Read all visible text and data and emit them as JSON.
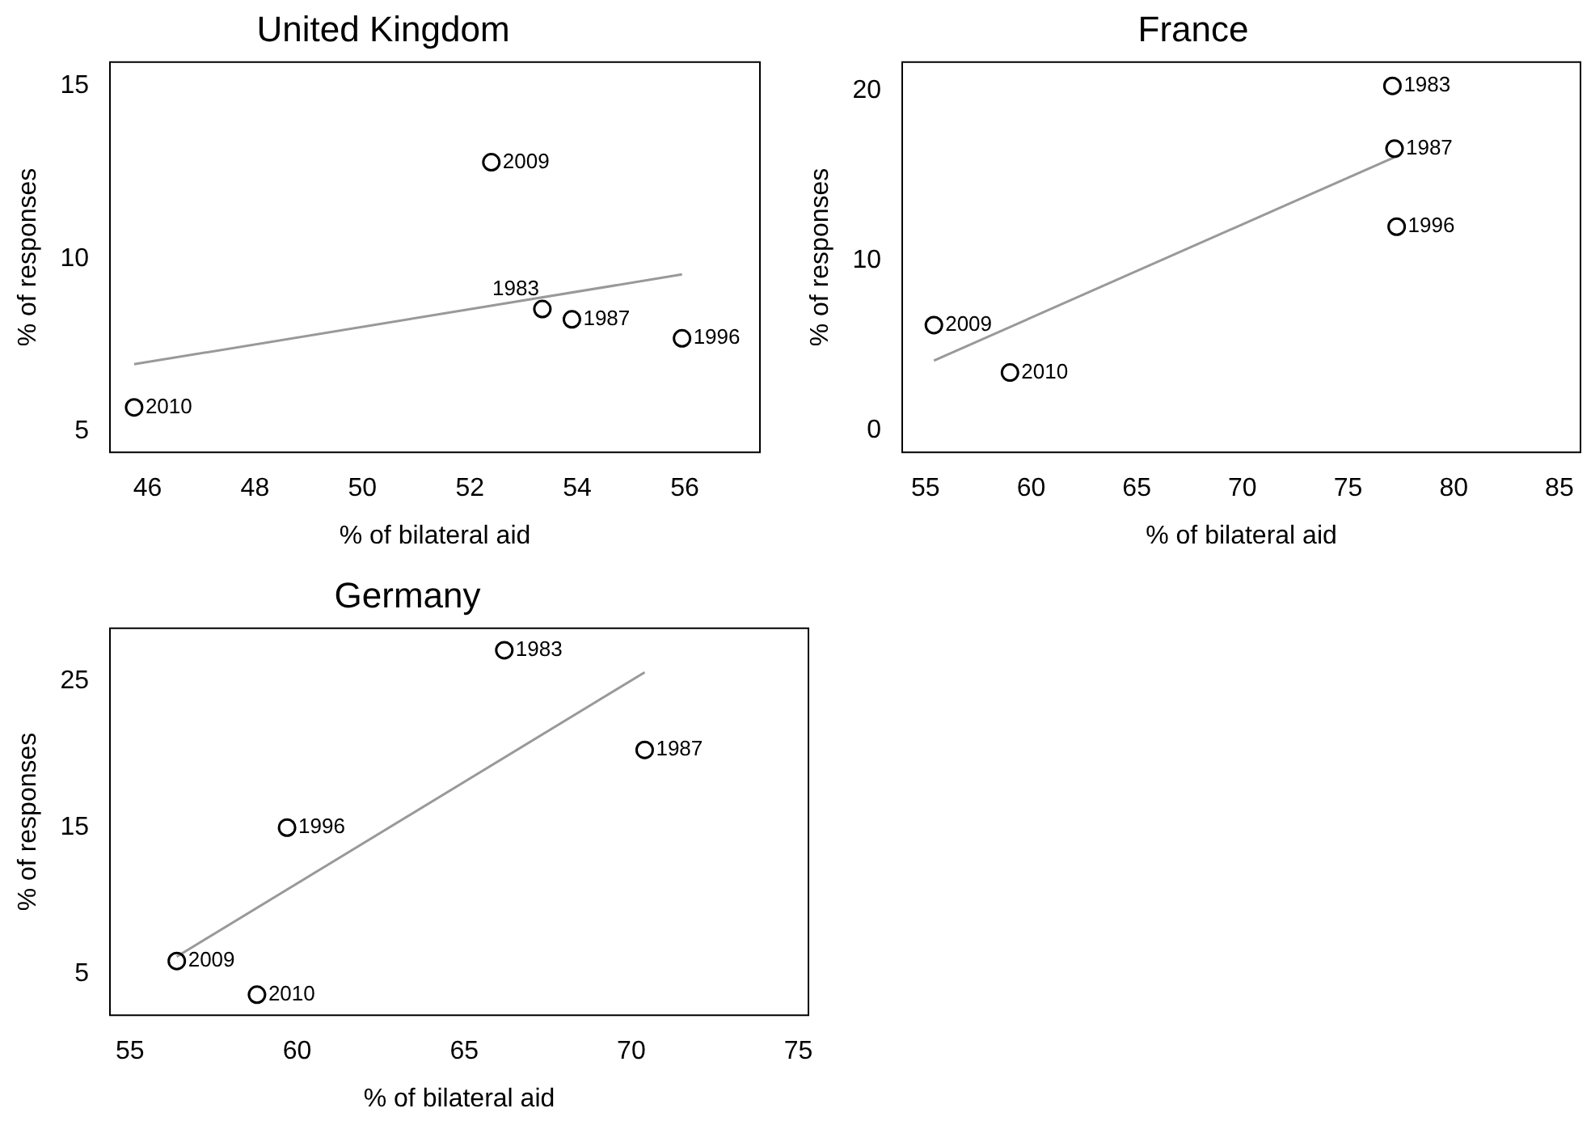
{
  "chart_data": [
    {
      "type": "scatter",
      "title": "United Kingdom",
      "xlabel": "% of bilateral aid",
      "ylabel": "% of responses",
      "xlim": [
        45.3,
        57.4
      ],
      "ylim": [
        4.4,
        15.7
      ],
      "xticks": [
        46,
        48,
        50,
        52,
        54,
        56
      ],
      "yticks": [
        5,
        10,
        15
      ],
      "legend": false,
      "series": [
        {
          "color": "#000000",
          "marker": "circle",
          "x": [
            52.4,
            53.35,
            53.9,
            55.95,
            45.75
          ],
          "values": [
            12.8,
            8.55,
            8.25,
            7.7,
            5.7
          ]
        },
        {
          "type": "line",
          "color": "#999999",
          "marker": "none",
          "x": [
            45.75,
            55.95
          ],
          "values": [
            6.95,
            9.55
          ]
        }
      ],
      "annotations": [
        {
          "text": "2009",
          "x": 52.4,
          "y": 12.8
        },
        {
          "text": "1983",
          "x": 53.35,
          "y": 8.55
        },
        {
          "text": "1987",
          "x": 53.9,
          "y": 8.25
        },
        {
          "text": "1996",
          "x": 55.95,
          "y": 7.7
        },
        {
          "text": "2010",
          "x": 45.75,
          "y": 5.7
        }
      ]
    },
    {
      "type": "scatter",
      "title": "France",
      "xlabel": "% of bilateral aid",
      "ylabel": "% of responses",
      "xlim": [
        53.9,
        86
      ],
      "ylim": [
        -1.3,
        21.7
      ],
      "xticks": [
        55,
        60,
        65,
        70,
        75,
        80,
        85
      ],
      "yticks": [
        0,
        10,
        20
      ],
      "legend": false,
      "series": [
        {
          "color": "#000000",
          "marker": "circle",
          "x": [
            77.1,
            77.2,
            77.3,
            55.4,
            59.0
          ],
          "values": [
            20.3,
            16.6,
            12.0,
            6.2,
            3.4
          ]
        },
        {
          "type": "line",
          "color": "#999999",
          "marker": "none",
          "x": [
            55.4,
            77.2
          ],
          "values": [
            4.1,
            16.1
          ]
        }
      ],
      "annotations": [
        {
          "text": "1983",
          "x": 77.1,
          "y": 20.3
        },
        {
          "text": "1987",
          "x": 77.2,
          "y": 16.6
        },
        {
          "text": "1996",
          "x": 77.3,
          "y": 12.0
        },
        {
          "text": "2009",
          "x": 55.4,
          "y": 6.2
        },
        {
          "text": "2010",
          "x": 59.0,
          "y": 3.4
        }
      ]
    },
    {
      "type": "scatter",
      "title": "Germany",
      "xlabel": "% of bilateral aid",
      "ylabel": "% of responses",
      "xlim": [
        54.4,
        75.3
      ],
      "ylim": [
        2.2,
        28.6
      ],
      "xticks": [
        55,
        60,
        65,
        70,
        75
      ],
      "yticks": [
        5,
        15,
        25
      ],
      "legend": false,
      "series": [
        {
          "color": "#000000",
          "marker": "circle",
          "x": [
            66.2,
            70.4,
            59.7,
            56.4,
            58.8
          ],
          "values": [
            27.1,
            20.3,
            15.0,
            5.9,
            3.6
          ]
        },
        {
          "type": "line",
          "color": "#999999",
          "marker": "none",
          "x": [
            56.4,
            70.4
          ],
          "values": [
            6.2,
            25.6
          ]
        }
      ],
      "annotations": [
        {
          "text": "1983",
          "x": 66.2,
          "y": 27.1
        },
        {
          "text": "1987",
          "x": 70.4,
          "y": 20.3
        },
        {
          "text": "1996",
          "x": 59.7,
          "y": 15.0
        },
        {
          "text": "2009",
          "x": 56.4,
          "y": 5.9
        },
        {
          "text": "2010",
          "x": 58.8,
          "y": 3.6
        }
      ]
    }
  ]
}
